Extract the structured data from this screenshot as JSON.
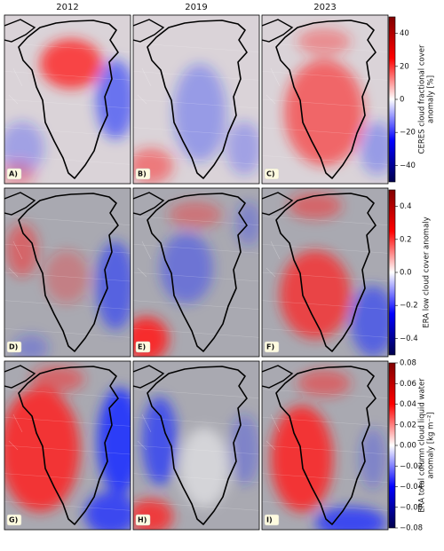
{
  "columns": [
    "2012",
    "2019",
    "2023"
  ],
  "panels": [
    "A)",
    "B)",
    "C)",
    "D)",
    "E)",
    "F)",
    "G)",
    "H)",
    "I)"
  ],
  "colorbars": [
    {
      "label": [
        "CERES cloud fractional cover",
        "anomaly [%]"
      ],
      "lim": [
        -50,
        50
      ],
      "ticks": [
        40,
        20,
        0,
        {
          "value": -20,
          "label": "−20"
        },
        {
          "value": -40,
          "label": "−40"
        }
      ]
    },
    {
      "label": [
        "ERA low cloud cover anomaly"
      ],
      "lim": [
        -0.5,
        0.5
      ],
      "ticks": [
        0.4,
        0.2,
        {
          "value": 0,
          "label": "0.0"
        },
        {
          "value": -0.2,
          "label": "−0.2"
        },
        {
          "value": -0.4,
          "label": "−0.4"
        }
      ]
    },
    {
      "label": [
        "ERA total column cloud liquid water",
        "anomaly [kg m⁻²]"
      ],
      "lim": [
        -0.08,
        0.08
      ],
      "ticks": [
        0.08,
        0.06,
        0.04,
        0.02,
        {
          "value": 0,
          "label": "0.00"
        },
        {
          "value": -0.02,
          "label": "−0.02"
        },
        {
          "value": -0.04,
          "label": "−0.04"
        },
        {
          "value": -0.06,
          "label": "−0.06"
        },
        {
          "value": -0.08,
          "label": "−0.08"
        }
      ]
    }
  ]
}
